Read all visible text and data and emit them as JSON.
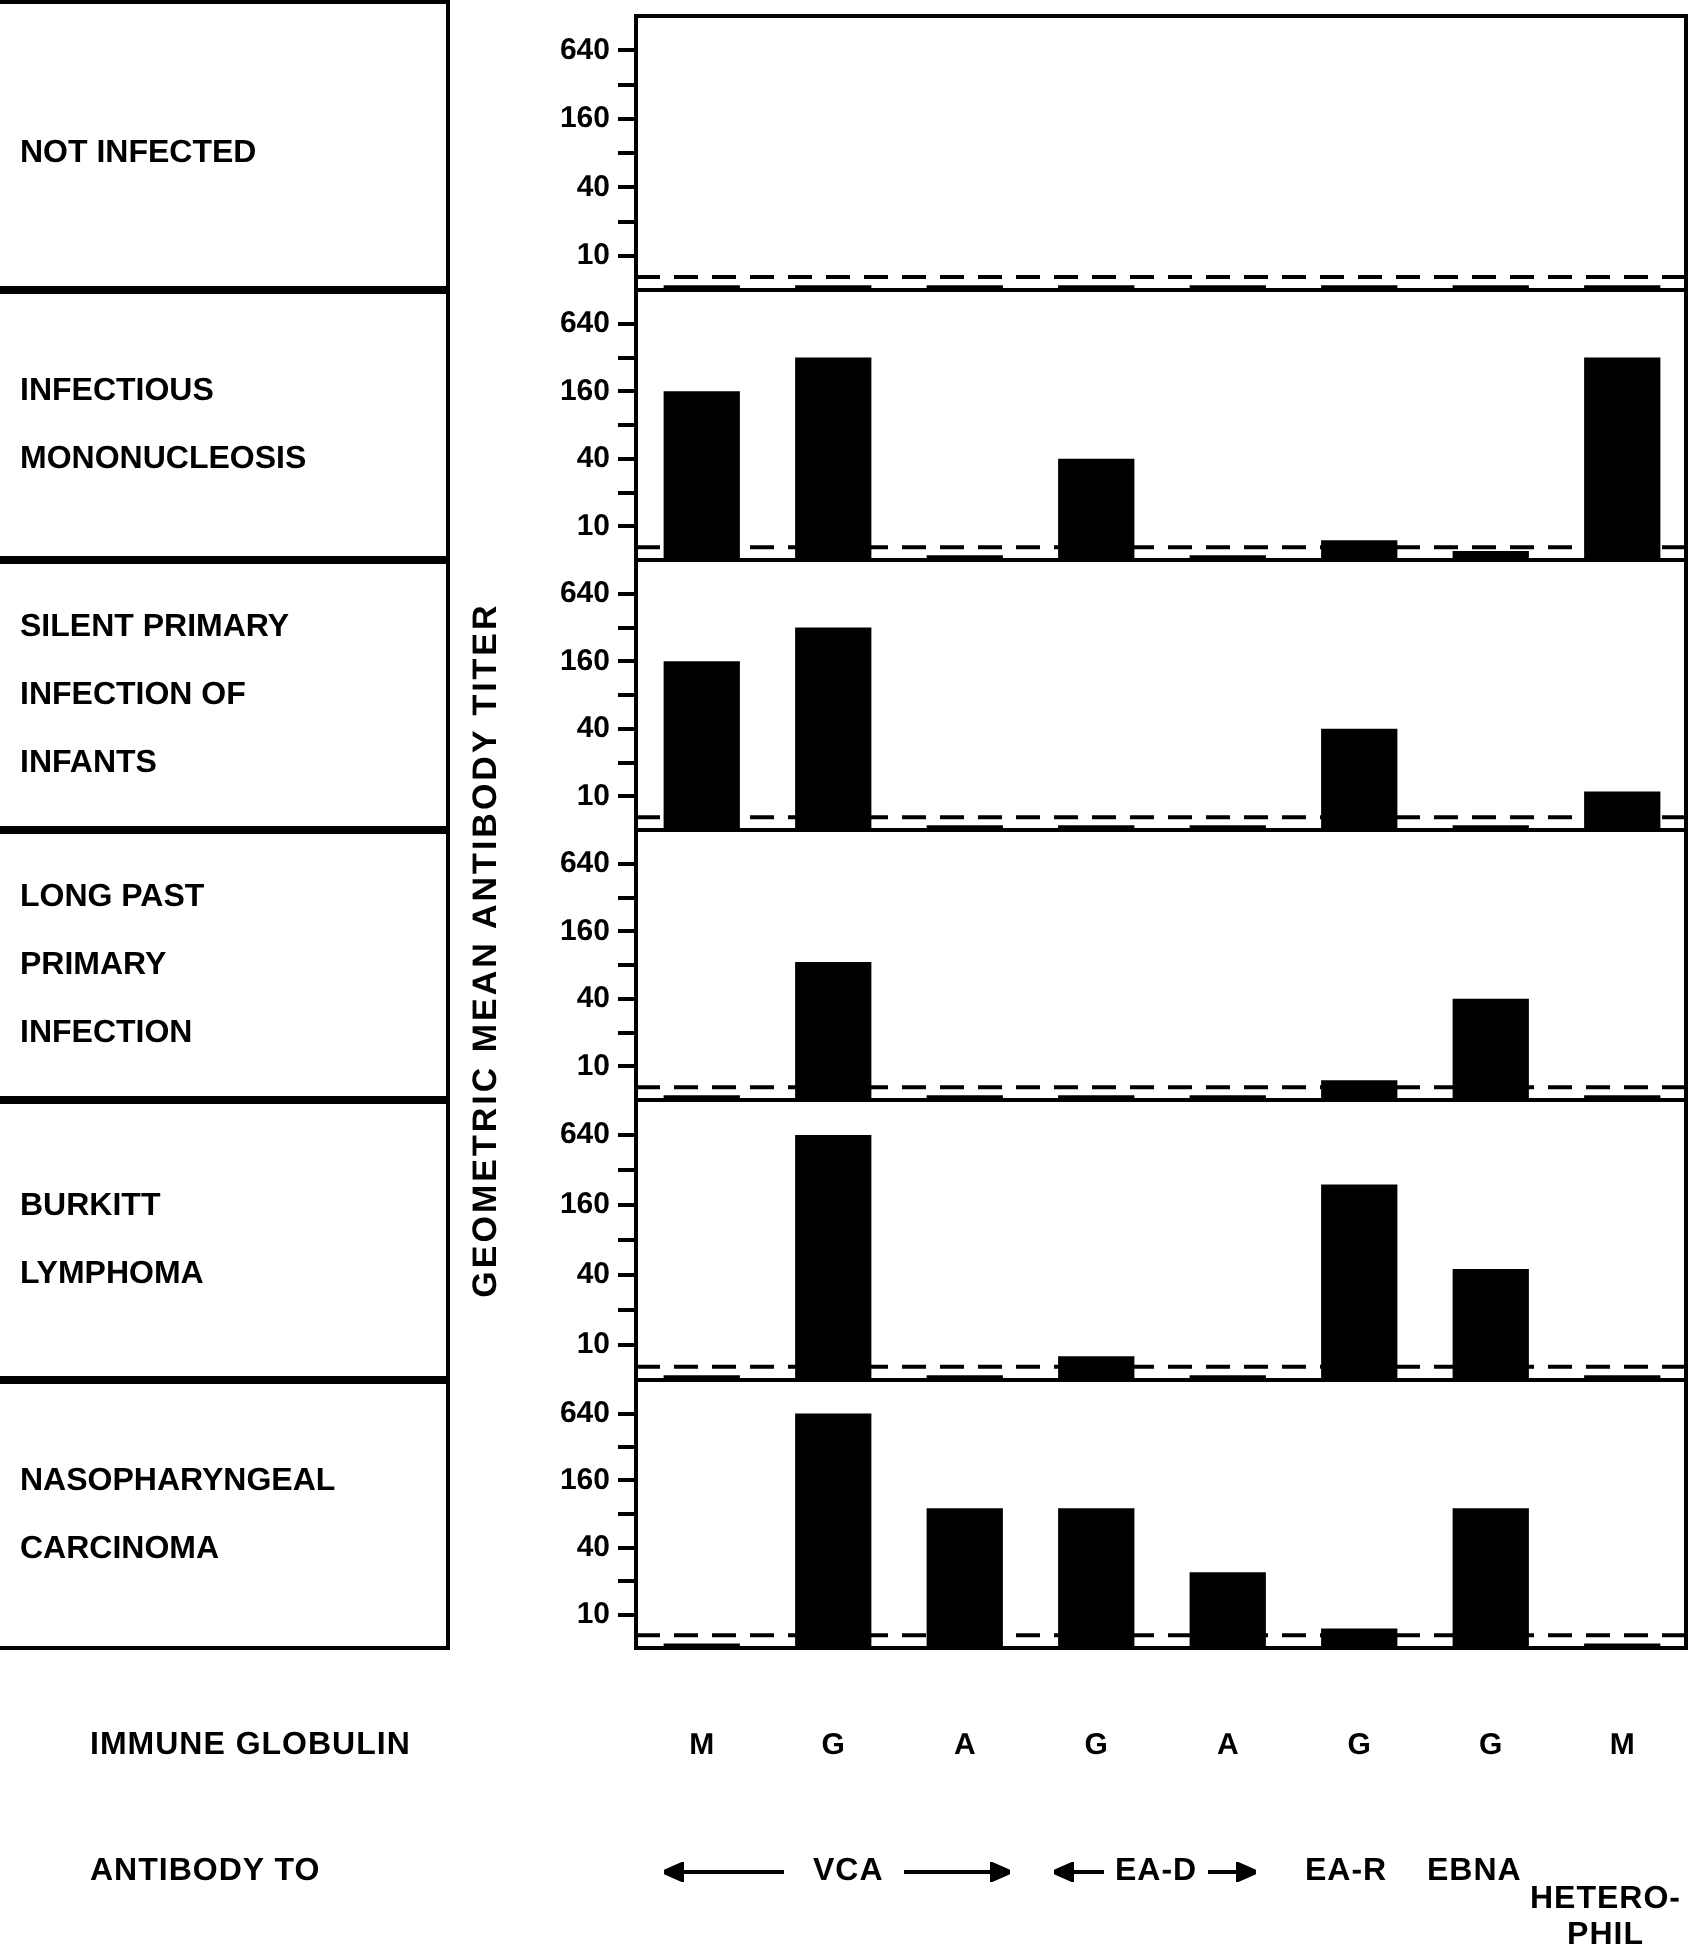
{
  "chart_data": [
    {
      "type": "bar",
      "ylabel": "NOT INFECTED",
      "categories": [
        null,
        null,
        null,
        null,
        null,
        null,
        null,
        null
      ],
      "color": "#000000",
      "values": [
        5.5,
        5.5,
        5.5,
        5.5,
        5.5,
        5.5,
        5.5,
        5.5
      ],
      "log": true,
      "ylim": [
        5,
        1280
      ],
      "yticks": [
        10,
        {
          "value": 20,
          "label": null
        },
        40,
        {
          "value": 80,
          "label": null
        },
        160,
        {
          "value": 320,
          "label": null
        },
        640
      ],
      "ref_lines": [
        {
          "axis": "y",
          "value": 6.5,
          "line_style": "dashed",
          "color": "#000000"
        }
      ],
      "tick_labels": "y"
    },
    {
      "type": "bar",
      "ylabel": "INFECTIOUS\nMONONUCLEOSIS",
      "categories": [
        null,
        null,
        null,
        null,
        null,
        null,
        null,
        null
      ],
      "color": "#000000",
      "values": [
        160,
        320,
        5.5,
        40,
        5.5,
        7.5,
        6,
        320
      ],
      "log": true,
      "ylim": [
        5,
        1280
      ],
      "yticks": [
        10,
        {
          "value": 20,
          "label": null
        },
        40,
        {
          "value": 80,
          "label": null
        },
        160,
        {
          "value": 320,
          "label": null
        },
        640
      ],
      "ref_lines": [
        {
          "axis": "y",
          "value": 6.5,
          "line_style": "dashed",
          "color": "#000000"
        }
      ],
      "tick_labels": "y"
    },
    {
      "type": "bar",
      "ylabel": "SILENT PRIMARY\nINFECTION OF\nINFANTS",
      "annotations": [
        "GEOMETRIC MEAN ANTIBODY TITER"
      ],
      "categories": [
        null,
        null,
        null,
        null,
        null,
        null,
        null,
        null
      ],
      "color": "#000000",
      "values": [
        160,
        320,
        5.5,
        5.5,
        5.5,
        40,
        5.5,
        11
      ],
      "log": true,
      "ylim": [
        5,
        1280
      ],
      "yticks": [
        10,
        {
          "value": 20,
          "label": null
        },
        40,
        {
          "value": 80,
          "label": null
        },
        160,
        {
          "value": 320,
          "label": null
        },
        640
      ],
      "ref_lines": [
        {
          "axis": "y",
          "value": 6.5,
          "line_style": "dashed",
          "color": "#000000"
        }
      ],
      "tick_labels": "y"
    },
    {
      "type": "bar",
      "ylabel": "LONG PAST\nPRIMARY\nINFECTION",
      "categories": [
        null,
        null,
        null,
        null,
        null,
        null,
        null,
        null
      ],
      "color": "#000000",
      "values": [
        5.5,
        85,
        5.5,
        5.5,
        5.5,
        7.5,
        40,
        5.5
      ],
      "log": true,
      "ylim": [
        5,
        1280
      ],
      "yticks": [
        10,
        {
          "value": 20,
          "label": null
        },
        40,
        {
          "value": 80,
          "label": null
        },
        160,
        {
          "value": 320,
          "label": null
        },
        640
      ],
      "ref_lines": [
        {
          "axis": "y",
          "value": 6.5,
          "line_style": "dashed",
          "color": "#000000"
        }
      ],
      "tick_labels": "y"
    },
    {
      "type": "bar",
      "ylabel": "BURKITT\nLYMPHOMA",
      "categories": [
        null,
        null,
        null,
        null,
        null,
        null,
        null,
        null
      ],
      "color": "#000000",
      "values": [
        5.5,
        640,
        5.5,
        8,
        5.5,
        240,
        45,
        5.5
      ],
      "log": true,
      "ylim": [
        5,
        1280
      ],
      "yticks": [
        10,
        {
          "value": 20,
          "label": null
        },
        40,
        {
          "value": 80,
          "label": null
        },
        160,
        {
          "value": 320,
          "label": null
        },
        640
      ],
      "ref_lines": [
        {
          "axis": "y",
          "value": 6.5,
          "line_style": "dashed",
          "color": "#000000"
        }
      ],
      "tick_labels": "y"
    },
    {
      "type": "bar",
      "ylabel": "NASOPHARYNGEAL\nCARCINOMA",
      "xlabel": "IMMUNE GLOBULIN",
      "categories": [
        "M",
        "G",
        "A",
        "G",
        "A",
        "G",
        "G",
        "M"
      ],
      "color": "#000000",
      "values": [
        5.5,
        640,
        90,
        90,
        24,
        7.5,
        90,
        5.5
      ],
      "log": true,
      "ylim": [
        5,
        1280
      ],
      "yticks": [
        10,
        {
          "value": 20,
          "label": null
        },
        40,
        {
          "value": 80,
          "label": null
        },
        160,
        {
          "value": 320,
          "label": null
        },
        640
      ],
      "ref_lines": [
        {
          "axis": "y",
          "value": 6.5,
          "line_style": "dashed",
          "color": "#000000"
        }
      ],
      "annotations": [
        "ANTIBODY TO",
        "VCA",
        "EA-D",
        "EA-R",
        "EBNA",
        "HETERO-\nPHIL"
      ]
    }
  ]
}
